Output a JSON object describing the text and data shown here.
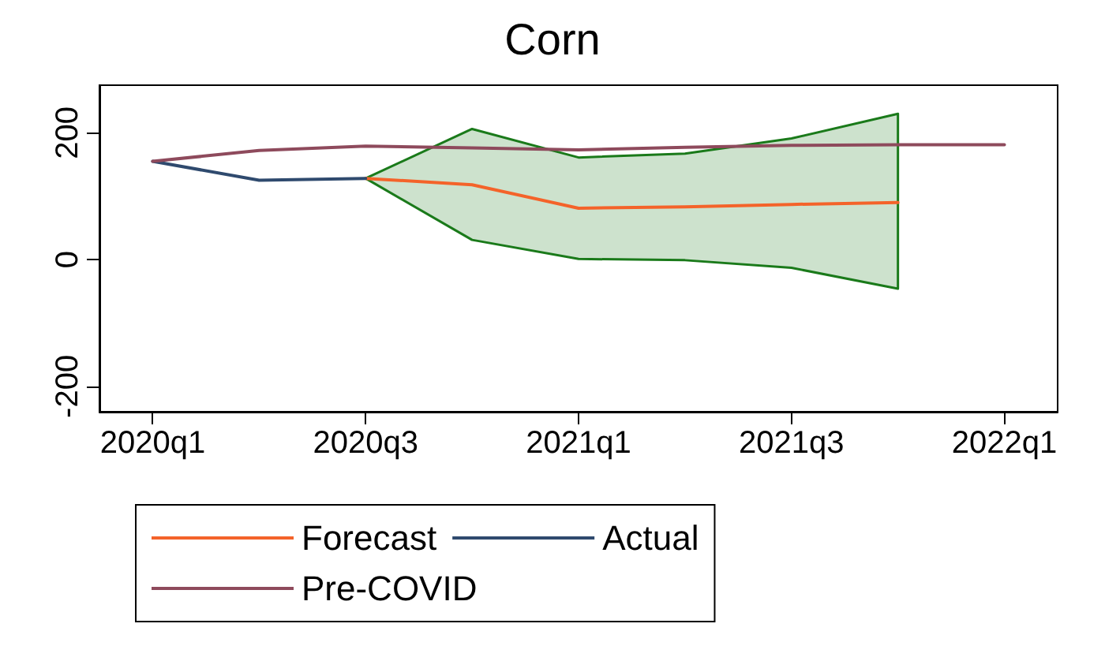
{
  "chart_data": {
    "type": "line",
    "title": "Corn",
    "categories": [
      "2020q1",
      null,
      "2020q3",
      null,
      "2021q1",
      null,
      "2021q3",
      null,
      "2022q1"
    ],
    "series": [
      {
        "name": "Forecast",
        "color": "#f4632a",
        "values": [
          null,
          null,
          128,
          118,
          81,
          83,
          87,
          90,
          null
        ],
        "lower": [
          null,
          null,
          128,
          31,
          1,
          -1,
          -13,
          -46,
          null
        ],
        "upper": [
          null,
          null,
          128,
          206,
          161,
          167,
          191,
          230,
          null
        ]
      },
      {
        "name": "Actual",
        "color": "#2f4a6e",
        "values": [
          155,
          125,
          128,
          null,
          null,
          null,
          null,
          null,
          null
        ]
      },
      {
        "name": "Pre-COVID",
        "color": "#8e4a5c",
        "values": [
          155,
          172,
          179,
          176,
          173,
          177,
          180,
          181,
          181
        ]
      }
    ],
    "ylim": [
      -240,
      275
    ],
    "yticks": [
      -200,
      0,
      200
    ],
    "legend": "bottom",
    "marker": "none",
    "line_style": "solid"
  }
}
